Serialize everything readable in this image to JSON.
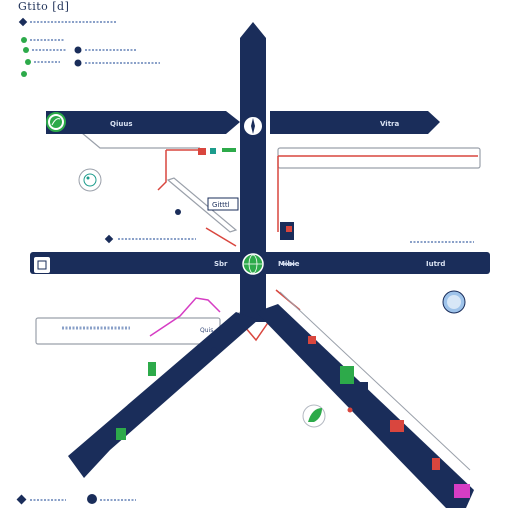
{
  "title": "Gtito [d]",
  "palette": {
    "navy": "#1a2d5a",
    "red": "#d9463e",
    "green": "#2daa4a",
    "magenta": "#d63dc4",
    "teal": "#1c9c8c",
    "gray": "#9aa0aa",
    "light_blue": "#9ec3ea"
  },
  "labels": {
    "top_left_bar": "Qiuus",
    "top_right_bar": "Vitra",
    "mid_left_bar": "Sbr",
    "mid_center_bar": "Mibie",
    "mid_right_bar": "Iutrd",
    "center_tag": "Gitttl",
    "lower_tag": "Quis"
  },
  "icons": {
    "top_left_node": "leaf-icon",
    "center_node": "compass-icon",
    "mid_left_node": "square-icon",
    "center_mid_node": "globe-icon",
    "left_floating": "globe-icon",
    "right_floating": "globe-icon",
    "lower_floating": "leaf-icon"
  }
}
